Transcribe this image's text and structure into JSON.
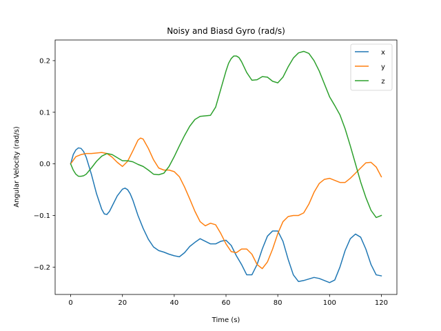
{
  "chart_data": {
    "type": "line",
    "title": "Noisy and Biasd Gyro (rad/s)",
    "xlabel": "Time (s)",
    "ylabel": "Angular Velocity (rad/s)",
    "xlim": [
      -6,
      126
    ],
    "ylim": [
      -0.253,
      0.24
    ],
    "xticks": [
      0,
      20,
      40,
      60,
      80,
      100,
      120
    ],
    "yticks": [
      -0.2,
      -0.1,
      0.0,
      0.1,
      0.2
    ],
    "ytick_labels": [
      "−0.2",
      "−0.1",
      "0.0",
      "0.1",
      "0.2"
    ],
    "grid": false,
    "legend_position": "top-right",
    "series": [
      {
        "name": "x",
        "color": "#1f77b4",
        "x": [
          0,
          1,
          2,
          3,
          4,
          5,
          6,
          8,
          10,
          12,
          13,
          14,
          15,
          16,
          18,
          20,
          21,
          22,
          23,
          24,
          26,
          28,
          30,
          32,
          34,
          36,
          38,
          40,
          42,
          44,
          46,
          48,
          50,
          52,
          54,
          56,
          58,
          60,
          62,
          64,
          66,
          68,
          70,
          72,
          74,
          76,
          78,
          80,
          82,
          84,
          86,
          88,
          90,
          92,
          94,
          96,
          98,
          100,
          102,
          104,
          106,
          108,
          110,
          112,
          114,
          116,
          118,
          120
        ],
        "y": [
          0.0,
          0.018,
          0.027,
          0.031,
          0.03,
          0.024,
          0.013,
          -0.02,
          -0.058,
          -0.088,
          -0.097,
          -0.098,
          -0.092,
          -0.082,
          -0.062,
          -0.049,
          -0.047,
          -0.05,
          -0.058,
          -0.07,
          -0.1,
          -0.125,
          -0.146,
          -0.161,
          -0.168,
          -0.171,
          -0.175,
          -0.178,
          -0.18,
          -0.172,
          -0.16,
          -0.152,
          -0.145,
          -0.15,
          -0.155,
          -0.155,
          -0.15,
          -0.148,
          -0.158,
          -0.178,
          -0.195,
          -0.215,
          -0.215,
          -0.195,
          -0.165,
          -0.14,
          -0.13,
          -0.13,
          -0.15,
          -0.185,
          -0.215,
          -0.228,
          -0.226,
          -0.223,
          -0.22,
          -0.222,
          -0.226,
          -0.23,
          -0.225,
          -0.2,
          -0.168,
          -0.145,
          -0.136,
          -0.142,
          -0.165,
          -0.195,
          -0.215,
          -0.217
        ]
      },
      {
        "name": "y",
        "color": "#ff7f0e",
        "x": [
          0,
          2,
          4,
          6,
          8,
          10,
          12,
          14,
          16,
          18,
          20,
          22,
          24,
          26,
          27,
          28,
          30,
          32,
          34,
          36,
          38,
          40,
          42,
          44,
          46,
          48,
          50,
          52,
          54,
          56,
          58,
          60,
          62,
          64,
          66,
          68,
          70,
          72,
          74,
          76,
          78,
          80,
          82,
          84,
          86,
          88,
          90,
          92,
          94,
          96,
          98,
          100,
          102,
          104,
          106,
          108,
          110,
          112,
          114,
          116,
          118,
          120
        ],
        "y": [
          0.0,
          0.014,
          0.018,
          0.02,
          0.02,
          0.021,
          0.022,
          0.02,
          0.013,
          0.003,
          -0.005,
          0.005,
          0.025,
          0.046,
          0.05,
          0.048,
          0.03,
          0.008,
          -0.008,
          -0.012,
          -0.012,
          -0.015,
          -0.025,
          -0.045,
          -0.068,
          -0.092,
          -0.112,
          -0.12,
          -0.115,
          -0.118,
          -0.135,
          -0.155,
          -0.17,
          -0.172,
          -0.165,
          -0.165,
          -0.175,
          -0.195,
          -0.203,
          -0.19,
          -0.165,
          -0.135,
          -0.112,
          -0.102,
          -0.1,
          -0.1,
          -0.095,
          -0.078,
          -0.055,
          -0.038,
          -0.03,
          -0.028,
          -0.032,
          -0.036,
          -0.036,
          -0.028,
          -0.018,
          -0.008,
          0.002,
          0.003,
          -0.006,
          -0.025
        ]
      },
      {
        "name": "z",
        "color": "#2ca02c",
        "x": [
          0,
          1,
          2,
          3,
          4,
          5,
          6,
          8,
          10,
          12,
          14,
          16,
          18,
          20,
          22,
          24,
          26,
          28,
          30,
          32,
          34,
          36,
          38,
          40,
          42,
          44,
          46,
          48,
          50,
          52,
          54,
          56,
          58,
          60,
          61,
          62,
          63,
          64,
          65,
          66,
          68,
          70,
          72,
          74,
          76,
          78,
          80,
          82,
          84,
          86,
          88,
          90,
          92,
          94,
          96,
          98,
          100,
          102,
          104,
          106,
          108,
          110,
          112,
          114,
          116,
          118,
          120
        ],
        "y": [
          0.0,
          -0.012,
          -0.02,
          -0.024,
          -0.024,
          -0.023,
          -0.02,
          -0.008,
          0.005,
          0.015,
          0.02,
          0.018,
          0.012,
          0.006,
          0.006,
          0.004,
          -0.001,
          -0.005,
          -0.012,
          -0.02,
          -0.021,
          -0.018,
          -0.005,
          0.014,
          0.035,
          0.055,
          0.073,
          0.086,
          0.092,
          0.093,
          0.094,
          0.11,
          0.145,
          0.18,
          0.195,
          0.204,
          0.209,
          0.209,
          0.206,
          0.198,
          0.177,
          0.162,
          0.163,
          0.169,
          0.168,
          0.16,
          0.157,
          0.168,
          0.188,
          0.205,
          0.215,
          0.218,
          0.214,
          0.2,
          0.18,
          0.155,
          0.13,
          0.113,
          0.095,
          0.068,
          0.035,
          0.0,
          -0.035,
          -0.065,
          -0.09,
          -0.104,
          -0.1
        ]
      }
    ]
  }
}
